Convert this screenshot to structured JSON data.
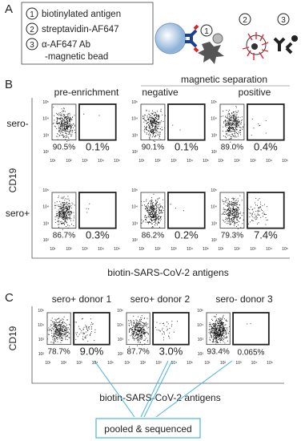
{
  "panel_labels": [
    "A",
    "B",
    "C"
  ],
  "legend": {
    "items": [
      {
        "number": "1",
        "text": "biotinylated antigen"
      },
      {
        "number": "2",
        "text": "streptavidin-AF647"
      },
      {
        "number": "3",
        "text": "α-AF647 Ab",
        "text2": "-magnetic bead"
      }
    ]
  },
  "schematic": {
    "steps": [
      "1",
      "2",
      "3"
    ]
  },
  "axis_ticks": {
    "x": [
      "10¹",
      "10²",
      "10³",
      "10⁴",
      "10⁵"
    ],
    "y": [
      "10⁵",
      "10⁴",
      "10³",
      "10²"
    ]
  },
  "panel_b": {
    "header_pre": "pre-enrichment",
    "header_group": "magnetic separation",
    "header_negative": "negative",
    "header_positive": "positive",
    "y_label": "CD19",
    "x_label": "biotin-SARS-CoV-2 antigens",
    "rows": [
      {
        "label": "sero-",
        "plots": [
          {
            "left": "90.5%",
            "right": "0.1%"
          },
          {
            "left": "90.1%",
            "right": "0.1%"
          },
          {
            "left": "89.0%",
            "right": "0.4%"
          }
        ]
      },
      {
        "label": "sero+",
        "plots": [
          {
            "left": "86.7%",
            "right": "0.3%"
          },
          {
            "left": "86.2%",
            "right": "0.2%"
          },
          {
            "left": "79.3%",
            "right": "7.4%"
          }
        ]
      }
    ]
  },
  "panel_c": {
    "y_label": "CD19",
    "x_label": "biotin-SARS-CoV-2 antigens",
    "plots": [
      {
        "title": "sero+ donor 1",
        "left": "78.7%",
        "right": "9.0%"
      },
      {
        "title": "sero+ donor 2",
        "left": "87.7%",
        "right": "3.0%"
      },
      {
        "title": "sero- donor 3",
        "left": "93.4%",
        "right": "0.065%"
      }
    ],
    "box": "pooled & sequenced"
  }
}
